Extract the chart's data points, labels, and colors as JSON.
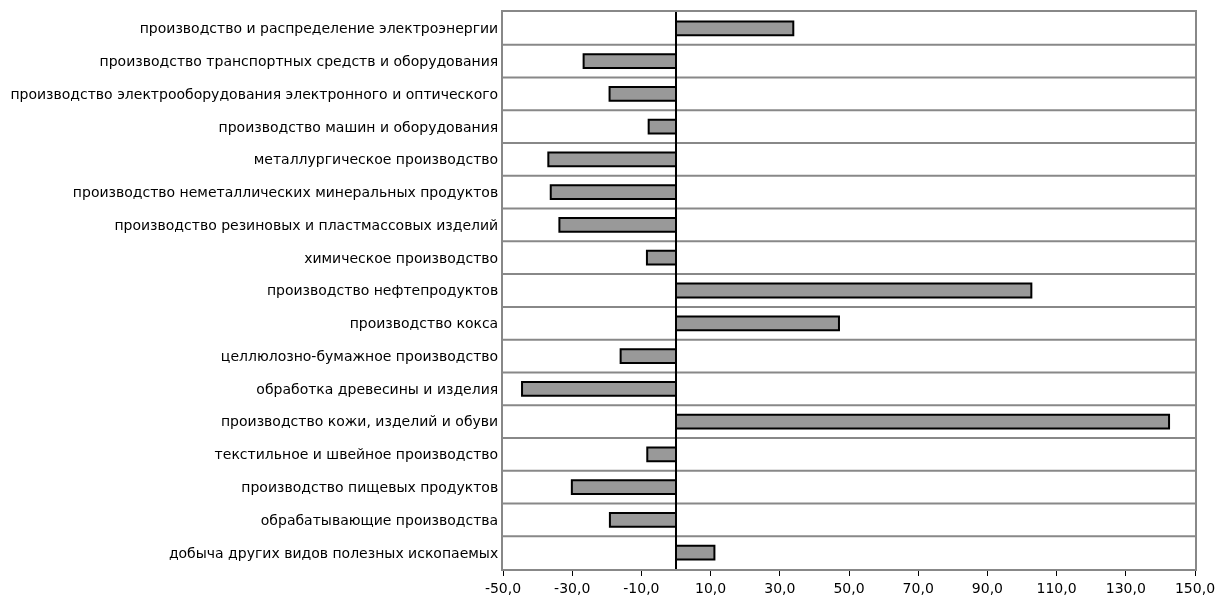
{
  "chart_data": {
    "type": "bar",
    "orientation": "horizontal",
    "categories": [
      "производство и распределение электроэнергии",
      "производство транспортных средств и оборудования",
      "производство электрооборудования электронного и оптического",
      "производство машин и оборудования",
      "металлургическое производство",
      "производство неметаллических минеральных продуктов",
      "производство резиновых и пластмассовых изделий",
      "химическое производство",
      "производство нефтепродуктов",
      "производство кокса",
      "целлюлозно-бумажное производство",
      "обработка древесины и изделия",
      "производство кожи, изделий и обуви",
      "текстильное и швейное производство",
      "производство пищевых продуктов",
      "обрабатывающие производства",
      "добыча других видов полезных ископаемых"
    ],
    "values": [
      33.9,
      -26.7,
      -19.2,
      -7.9,
      -36.9,
      -36.2,
      -33.7,
      -8.4,
      102.7,
      47.1,
      -16.0,
      -44.5,
      142.5,
      -8.3,
      -30.1,
      -19.1,
      11.1
    ],
    "color": "#999999",
    "xlim": [
      -50,
      150
    ],
    "xticks": [
      {
        "value": -50,
        "label": "-50,0"
      },
      {
        "value": -30,
        "label": "-30,0"
      },
      {
        "value": -10,
        "label": "-10,0"
      },
      {
        "value": 10,
        "label": "10,0"
      },
      {
        "value": 30,
        "label": "30,0"
      },
      {
        "value": 50,
        "label": "50,0"
      },
      {
        "value": 70,
        "label": "70,0"
      },
      {
        "value": 90,
        "label": "90,0"
      },
      {
        "value": 110,
        "label": "110,0"
      },
      {
        "value": 130,
        "label": "130,0"
      },
      {
        "value": 150,
        "label": "150,0"
      }
    ],
    "grid": "y"
  }
}
